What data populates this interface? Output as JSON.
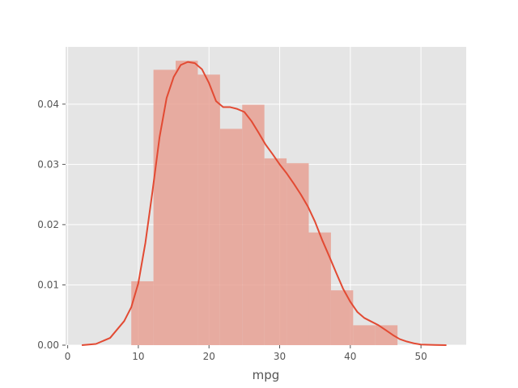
{
  "chart_data": {
    "type": "bar",
    "style": "histogram with kde line",
    "title": "",
    "xlabel": "mpg",
    "ylabel": "",
    "xlim": [
      -0.3,
      56.4
    ],
    "ylim": [
      0,
      0.0495
    ],
    "grid": true,
    "x_ticks": [
      0,
      10,
      20,
      30,
      40,
      50
    ],
    "x_tick_labels": [
      "0",
      "10",
      "20",
      "30",
      "40",
      "50"
    ],
    "y_ticks": [
      0,
      0.01,
      0.02,
      0.03,
      0.04
    ],
    "y_tick_labels": [
      "0.00",
      "0.01",
      "0.02",
      "0.03",
      "0.04"
    ],
    "bins": [
      {
        "x0": 9.0,
        "x1": 12.14,
        "value": 0.0106
      },
      {
        "x0": 12.14,
        "x1": 15.28,
        "value": 0.0457
      },
      {
        "x0": 15.28,
        "x1": 18.42,
        "value": 0.0472
      },
      {
        "x0": 18.42,
        "x1": 21.56,
        "value": 0.0449
      },
      {
        "x0": 21.56,
        "x1": 24.7,
        "value": 0.0359
      },
      {
        "x0": 24.7,
        "x1": 27.84,
        "value": 0.0399
      },
      {
        "x0": 27.84,
        "x1": 30.98,
        "value": 0.031
      },
      {
        "x0": 30.98,
        "x1": 34.12,
        "value": 0.0302
      },
      {
        "x0": 34.12,
        "x1": 37.26,
        "value": 0.0187
      },
      {
        "x0": 37.26,
        "x1": 40.4,
        "value": 0.0091
      },
      {
        "x0": 40.4,
        "x1": 43.54,
        "value": 0.0033
      },
      {
        "x0": 43.54,
        "x1": 46.68,
        "value": 0.0033
      }
    ],
    "kde": {
      "x": [
        2,
        4,
        6,
        8,
        9,
        10,
        11,
        12,
        13,
        14,
        15,
        16,
        17,
        18,
        19,
        20,
        21,
        22,
        23,
        24,
        25,
        26,
        27,
        28,
        29,
        30,
        31,
        32,
        33,
        34,
        35,
        36,
        37,
        38,
        39,
        40,
        41,
        42,
        43,
        44,
        45,
        46,
        47,
        48,
        49,
        50,
        52,
        53.6
      ],
      "y": [
        0.0,
        0.0002,
        0.0012,
        0.004,
        0.0063,
        0.0103,
        0.017,
        0.0255,
        0.0345,
        0.041,
        0.0445,
        0.0465,
        0.047,
        0.0468,
        0.0458,
        0.0435,
        0.0405,
        0.0395,
        0.0395,
        0.0392,
        0.0387,
        0.0372,
        0.0353,
        0.0333,
        0.0317,
        0.03,
        0.0285,
        0.0268,
        0.025,
        0.023,
        0.0205,
        0.0175,
        0.0148,
        0.012,
        0.0093,
        0.0072,
        0.0055,
        0.0045,
        0.0039,
        0.0033,
        0.0025,
        0.0017,
        0.001,
        0.0006,
        0.0003,
        0.0001,
        3e-05,
        0.0
      ]
    },
    "colors": {
      "plot_background": "#e5e5e5",
      "grid": "#ffffff",
      "bar_fill": "#e8a194",
      "line": "#e24a33",
      "tick_text": "#555555"
    }
  }
}
